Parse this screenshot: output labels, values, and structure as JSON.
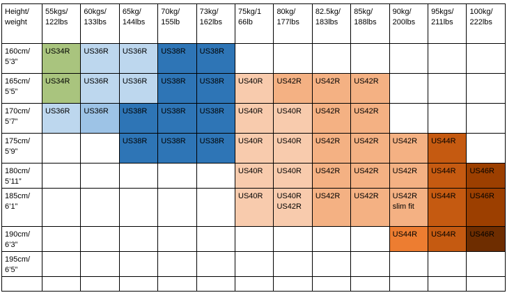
{
  "page": {
    "background": "#ffffff",
    "border_color": "#000000",
    "text_color": "#000000"
  },
  "colors": {
    "green": "#a9c47e",
    "blue_light": "#bdd7ee",
    "blue_medium": "#9dc3e6",
    "blue": "#2e75b6",
    "peach_light": "#f8cbad",
    "peach": "#f4b183",
    "orange": "#ed7d31",
    "orange_dark": "#c55a11",
    "brown": "#9c3f00",
    "brown_dark": "#6e2d00"
  },
  "chart_data": {
    "type": "table",
    "columns": [
      "Height/\nweight",
      "55kgs/\n122lbs",
      "60kgs/\n133lbs",
      "65kg/\n144lbs",
      "70kg/\n155lb",
      "73kg/\n162lbs",
      "75kg/1\n66lb",
      "80kg/\n177lbs",
      "82.5kg/\n183lbs",
      "85kg/\n188lbs",
      "90kg/\n200lbs",
      "95kgs/\n211lbs",
      "100kg/\n222lbs"
    ],
    "rows": [
      {
        "label": "160cm/\n5’3”",
        "cells": [
          {
            "text": "US34R",
            "color": "green"
          },
          {
            "text": "US36R",
            "color": "blue_light"
          },
          {
            "text": "US36R",
            "color": "blue_light"
          },
          {
            "text": "US38R",
            "color": "blue"
          },
          {
            "text": "US38R",
            "color": "blue"
          },
          null,
          null,
          null,
          null,
          null,
          null,
          null
        ]
      },
      {
        "label": "165cm/\n5’5”",
        "cells": [
          {
            "text": "US34R",
            "color": "green"
          },
          {
            "text": "US36R",
            "color": "blue_light"
          },
          {
            "text": "US36R",
            "color": "blue_light"
          },
          {
            "text": "US38R",
            "color": "blue"
          },
          {
            "text": "US38R",
            "color": "blue"
          },
          {
            "text": "US40R",
            "color": "peach_light"
          },
          {
            "text": "US42R",
            "color": "peach"
          },
          {
            "text": "US42R",
            "color": "peach"
          },
          {
            "text": "US42R",
            "color": "peach"
          },
          null,
          null,
          null
        ]
      },
      {
        "label": "170cm/\n5’7”",
        "cells": [
          {
            "text": "US36R",
            "color": "blue_light"
          },
          {
            "text": "US36R",
            "color": "blue_medium"
          },
          {
            "text": "US38R",
            "color": "blue"
          },
          {
            "text": "US38R",
            "color": "blue"
          },
          {
            "text": "US38R",
            "color": "blue"
          },
          {
            "text": "US40R",
            "color": "peach_light"
          },
          {
            "text": "US40R",
            "color": "peach_light"
          },
          {
            "text": "US42R",
            "color": "peach"
          },
          {
            "text": "US42R",
            "color": "peach"
          },
          null,
          null,
          null
        ]
      },
      {
        "label": "175cm/\n5’9”",
        "cells": [
          null,
          null,
          {
            "text": "US38R",
            "color": "blue"
          },
          {
            "text": "US38R",
            "color": "blue"
          },
          {
            "text": "US38R",
            "color": "blue"
          },
          {
            "text": "US40R",
            "color": "peach_light"
          },
          {
            "text": "US40R",
            "color": "peach_light"
          },
          {
            "text": "US42R",
            "color": "peach"
          },
          {
            "text": "US42R",
            "color": "peach"
          },
          {
            "text": "US42R",
            "color": "peach"
          },
          {
            "text": "US44R",
            "color": "orange_dark"
          },
          null
        ]
      },
      {
        "label": "180cm/\n5’11”",
        "cells": [
          null,
          null,
          null,
          null,
          null,
          {
            "text": "US40R",
            "color": "peach_light"
          },
          {
            "text": "US40R",
            "color": "peach_light"
          },
          {
            "text": "US42R",
            "color": "peach"
          },
          {
            "text": "US42R",
            "color": "peach"
          },
          {
            "text": "US42R",
            "color": "peach"
          },
          {
            "text": "US44R",
            "color": "orange_dark"
          },
          {
            "text": "US46R",
            "color": "brown"
          }
        ]
      },
      {
        "label": "185cm/\n6’1”",
        "cells": [
          null,
          null,
          null,
          null,
          null,
          {
            "text": "US40R",
            "color": "peach_light"
          },
          {
            "text": "US40R\nUS42R",
            "color": "peach_light"
          },
          {
            "text": "US42R",
            "color": "peach"
          },
          {
            "text": "US42R",
            "color": "peach"
          },
          {
            "text": "US42R\nslim fit",
            "color": "peach"
          },
          {
            "text": "US44R",
            "color": "orange_dark"
          },
          {
            "text": "US46R",
            "color": "brown"
          }
        ]
      },
      {
        "label": "190cm/\n6’3”",
        "cells": [
          null,
          null,
          null,
          null,
          null,
          null,
          null,
          null,
          null,
          {
            "text": "US44R",
            "color": "orange"
          },
          {
            "text": "US44R",
            "color": "orange_dark"
          },
          {
            "text": "US46R",
            "color": "brown_dark"
          }
        ]
      },
      {
        "label": "195cm/\n6’5”",
        "cells": [
          null,
          null,
          null,
          null,
          null,
          null,
          null,
          null,
          null,
          null,
          null,
          null
        ]
      },
      {
        "label": "",
        "cells": [
          null,
          null,
          null,
          null,
          null,
          null,
          null,
          null,
          null,
          null,
          null,
          null
        ]
      }
    ]
  }
}
